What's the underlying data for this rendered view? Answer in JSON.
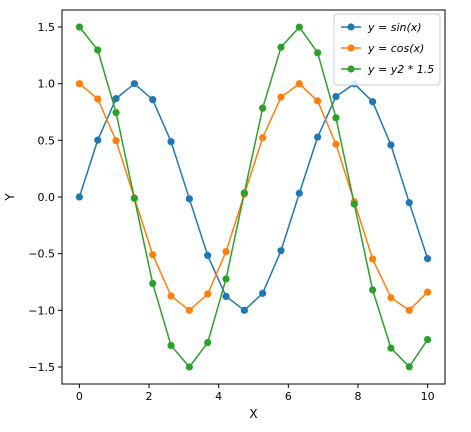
{
  "chart_data": {
    "type": "line",
    "xlabel": "X",
    "ylabel": "Y",
    "xlim": [
      -0.5,
      10.5
    ],
    "ylim": [
      -1.65,
      1.65
    ],
    "xticks": [
      0,
      2,
      4,
      6,
      8,
      10
    ],
    "xtick_labels": [
      "0",
      "2",
      "4",
      "6",
      "8",
      "10"
    ],
    "yticks": [
      -1.5,
      -1.0,
      -0.5,
      0.0,
      0.5,
      1.0,
      1.5
    ],
    "ytick_labels": [
      "−1.5",
      "−1.0",
      "−0.5",
      "0.0",
      "0.5",
      "1.0",
      "1.5"
    ],
    "grid": false,
    "legend_position": "top-right",
    "x": [
      0,
      0.5263,
      1.0526,
      1.5789,
      2.1053,
      2.6316,
      3.1579,
      3.6842,
      4.2105,
      4.7368,
      5.2632,
      5.7895,
      6.3158,
      6.8421,
      7.3684,
      7.8947,
      8.4211,
      8.9474,
      9.4737,
      10
    ],
    "series": [
      {
        "name": "y = sin(x)",
        "color": "#1f77b4",
        "values": [
          0.0,
          0.502,
          0.868,
          1.0,
          0.859,
          0.488,
          -0.016,
          -0.516,
          -0.877,
          -1.0,
          -0.85,
          -0.474,
          0.033,
          0.529,
          0.886,
          0.999,
          0.841,
          0.459,
          -0.05,
          -0.544
        ]
      },
      {
        "name": "y = cos(x)",
        "color": "#ff7f0e",
        "values": [
          1.0,
          0.865,
          0.497,
          -0.008,
          -0.509,
          -0.873,
          -1.0,
          -0.856,
          -0.482,
          0.025,
          0.523,
          0.881,
          0.999,
          0.848,
          0.466,
          -0.042,
          -0.547,
          -0.889,
          -0.999,
          -0.839
        ]
      },
      {
        "name": "y = y2 * 1.5",
        "color": "#2ca02c",
        "values": [
          1.5,
          1.297,
          0.745,
          -0.012,
          -0.763,
          -1.31,
          -1.5,
          -1.284,
          -0.723,
          0.037,
          0.784,
          1.321,
          1.499,
          1.272,
          0.699,
          -0.063,
          -0.82,
          -1.333,
          -1.498,
          -1.258
        ]
      }
    ]
  }
}
